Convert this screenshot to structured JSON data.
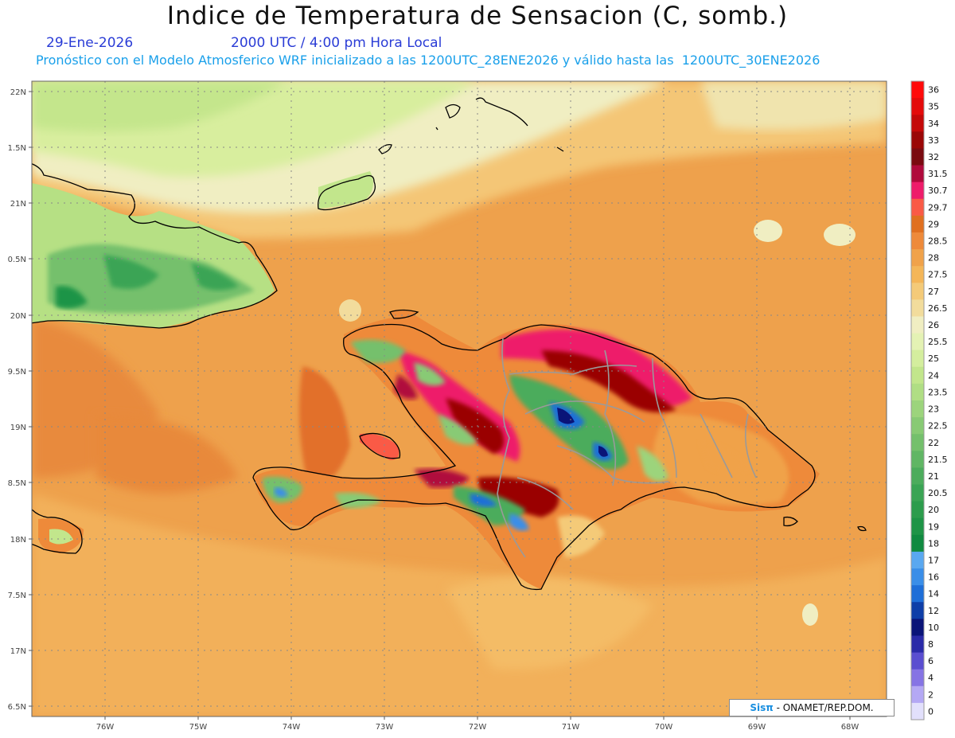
{
  "header": {
    "title": "Indice de Temperatura de Sensacion (C, somb.)",
    "date": "29-Ene-2026",
    "time": "2000 UTC / 4:00 pm Hora Local",
    "model_info": "Pronóstico con el Modelo Atmosferico WRF inicializado a las 1200UTC_28ENE2026 y válido hasta las  1200UTC_30ENE2026"
  },
  "map": {
    "lat_labels": [
      "22N",
      "1.5N",
      "21N",
      "0.5N",
      "20N",
      "9.5N",
      "19N",
      "8.5N",
      "18N",
      "7.5N",
      "17N",
      "6.5N"
    ],
    "lon_labels": [
      "76W",
      "75W",
      "74W",
      "73W",
      "72W",
      "71W",
      "70W",
      "69W",
      "68W"
    ]
  },
  "colorbar": {
    "levels": [
      {
        "label": "36",
        "color": "#ff0a0a"
      },
      {
        "label": "35",
        "color": "#e40a0a"
      },
      {
        "label": "34",
        "color": "#c40808"
      },
      {
        "label": "33",
        "color": "#9a0606"
      },
      {
        "label": "32",
        "color": "#7a0a10"
      },
      {
        "label": "31.5",
        "color": "#b00a3c"
      },
      {
        "label": "30.7",
        "color": "#ee1c6a"
      },
      {
        "label": "29.7",
        "color": "#fa5a46"
      },
      {
        "label": "29",
        "color": "#e07020"
      },
      {
        "label": "28.5",
        "color": "#ee8a3a"
      },
      {
        "label": "28",
        "color": "#f0a24a"
      },
      {
        "label": "27.5",
        "color": "#f4b658"
      },
      {
        "label": "27",
        "color": "#f4ca78"
      },
      {
        "label": "26.5",
        "color": "#f2dc9c"
      },
      {
        "label": "26",
        "color": "#f0eec2"
      },
      {
        "label": "25.5",
        "color": "#e4f2b4"
      },
      {
        "label": "25",
        "color": "#d4ee9e"
      },
      {
        "label": "24",
        "color": "#c2e68c"
      },
      {
        "label": "23.5",
        "color": "#b0de84"
      },
      {
        "label": "23",
        "color": "#9cd47c"
      },
      {
        "label": "22.5",
        "color": "#88ca74"
      },
      {
        "label": "22",
        "color": "#74c06c"
      },
      {
        "label": "21.5",
        "color": "#60b664"
      },
      {
        "label": "21",
        "color": "#4cac5c"
      },
      {
        "label": "20.5",
        "color": "#3aa454"
      },
      {
        "label": "20",
        "color": "#2c9c4c"
      },
      {
        "label": "19",
        "color": "#1e9446"
      },
      {
        "label": "18",
        "color": "#108a40"
      },
      {
        "label": "17",
        "color": "#5aa8f0"
      },
      {
        "label": "16",
        "color": "#3a8ee8"
      },
      {
        "label": "14",
        "color": "#1e6ed8"
      },
      {
        "label": "12",
        "color": "#0e3ea8"
      },
      {
        "label": "10",
        "color": "#0a1478"
      },
      {
        "label": "8",
        "color": "#2a2aa8"
      },
      {
        "label": "6",
        "color": "#5a4ed0"
      },
      {
        "label": "4",
        "color": "#8674e4"
      },
      {
        "label": "2",
        "color": "#b4a8f4"
      },
      {
        "label": "0",
        "color": "#e2e0fc"
      }
    ]
  },
  "credit": {
    "sis": "Sisπ",
    "text": " - ONAMET/REP.DOM."
  }
}
